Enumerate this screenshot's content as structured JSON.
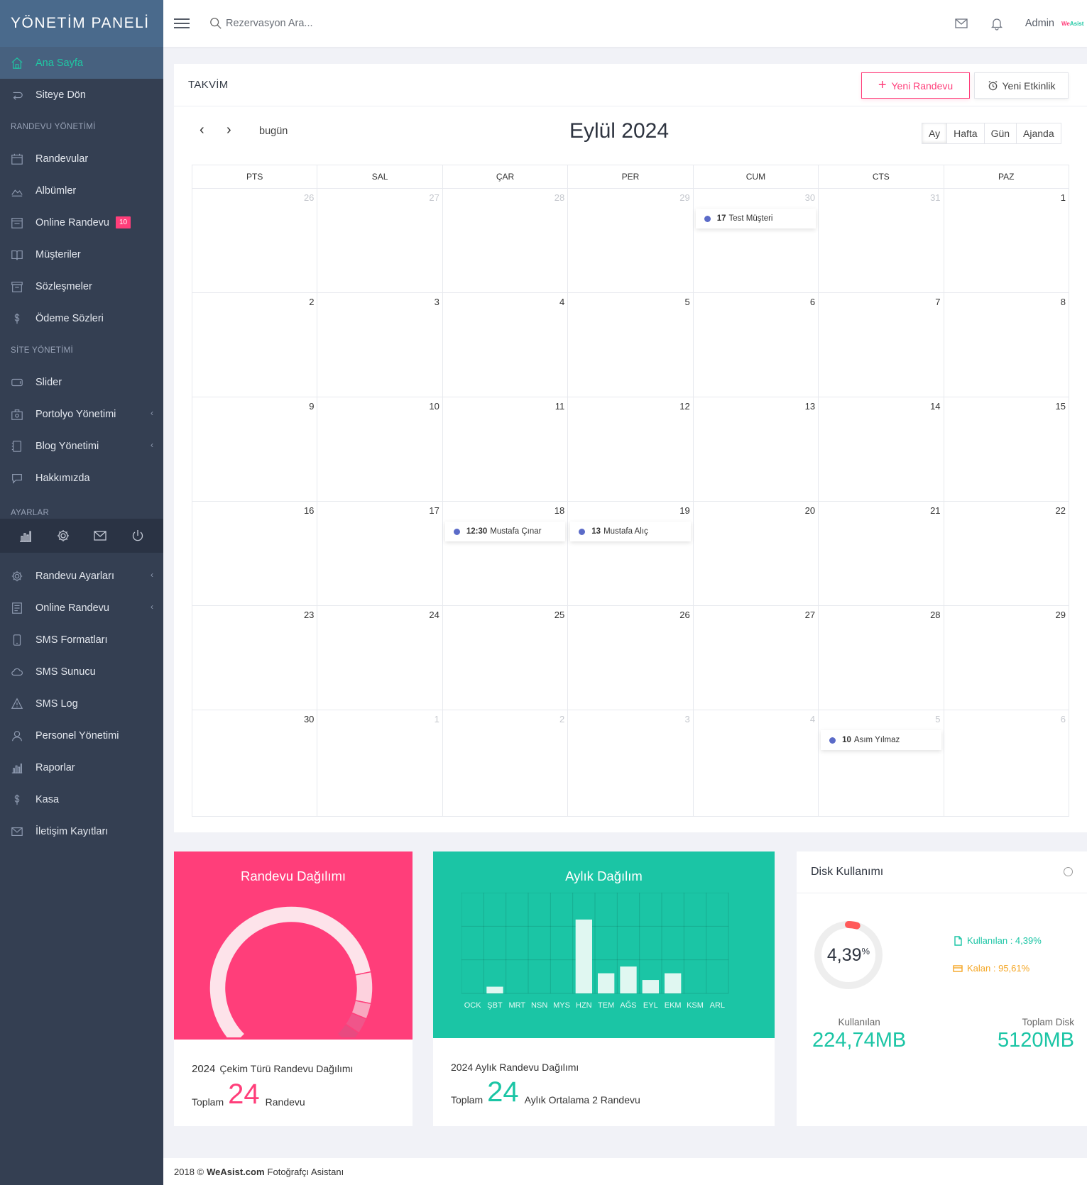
{
  "sidebar": {
    "brand": "YÖNETİM PANELİ",
    "items_top": [
      {
        "label": "Ana Sayfa",
        "icon": "home-icon",
        "active": true
      },
      {
        "label": "Siteye Dön",
        "icon": "return-icon"
      }
    ],
    "section_randevu": "RANDEVU YÖNETİMİ",
    "items_randevu": [
      {
        "label": "Randevular",
        "icon": "calendar-icon"
      },
      {
        "label": "Albümler",
        "icon": "album-icon"
      },
      {
        "label": "Online Randevu",
        "icon": "inbox-icon",
        "badge": "10"
      },
      {
        "label": "Müşteriler",
        "icon": "book-icon"
      },
      {
        "label": "Sözleşmeler",
        "icon": "archive-icon"
      },
      {
        "label": "Ödeme Sözleri",
        "icon": "dollar-icon"
      }
    ],
    "section_site": "SİTE YÖNETİMİ",
    "items_site": [
      {
        "label": "Slider",
        "icon": "slider-icon"
      },
      {
        "label": "Portolyo Yönetimi",
        "icon": "portfolio-icon",
        "chevron": true
      },
      {
        "label": "Blog Yönetimi",
        "icon": "blog-icon",
        "chevron": true
      },
      {
        "label": "Hakkımızda",
        "icon": "chat-icon"
      }
    ],
    "section_settings": "AYARLAR",
    "settings_icons": [
      "stats-icon",
      "gear-icon",
      "mail-icon",
      "power-icon"
    ],
    "items_settings": [
      {
        "label": "Randevu Ayarları",
        "icon": "gear-icon",
        "chevron": true
      },
      {
        "label": "Online Randevu",
        "icon": "document-icon",
        "chevron": true
      },
      {
        "label": "SMS Formatları",
        "icon": "phone-icon"
      },
      {
        "label": "SMS Sunucu",
        "icon": "cloud-icon"
      },
      {
        "label": "SMS Log",
        "icon": "warning-icon"
      },
      {
        "label": "Personel Yönetimi",
        "icon": "user-icon"
      },
      {
        "label": "Raporlar",
        "icon": "stats-icon"
      },
      {
        "label": "Kasa",
        "icon": "dollar-icon"
      },
      {
        "label": "İletişim Kayıtları",
        "icon": "mail-icon"
      }
    ]
  },
  "topbar": {
    "search_placeholder": "Rezervasyon Ara...",
    "admin_label": "Admin",
    "logo_text_a": "We",
    "logo_text_b": "Asist"
  },
  "calendar": {
    "card_title": "TAKVİM",
    "new_appointment": "Yeni Randevu",
    "new_event": "Yeni Etkinlik",
    "prev": "‹",
    "next": "›",
    "today": "bugün",
    "month_title": "Eylül 2024",
    "views": [
      "Ay",
      "Hafta",
      "Gün",
      "Ajanda"
    ],
    "active_view": "Ay",
    "weekdays": [
      "PTS",
      "SAL",
      "ÇAR",
      "PER",
      "CUM",
      "CTS",
      "PAZ"
    ],
    "weeks": [
      [
        {
          "d": "26",
          "o": true
        },
        {
          "d": "27",
          "o": true
        },
        {
          "d": "28",
          "o": true
        },
        {
          "d": "29",
          "o": true
        },
        {
          "d": "30",
          "o": true,
          "ev": {
            "time": "17",
            "title": "Test Müşteri"
          }
        },
        {
          "d": "31",
          "o": true
        },
        {
          "d": "1"
        }
      ],
      [
        {
          "d": "2"
        },
        {
          "d": "3"
        },
        {
          "d": "4"
        },
        {
          "d": "5"
        },
        {
          "d": "6"
        },
        {
          "d": "7"
        },
        {
          "d": "8"
        }
      ],
      [
        {
          "d": "9"
        },
        {
          "d": "10"
        },
        {
          "d": "11"
        },
        {
          "d": "12"
        },
        {
          "d": "13"
        },
        {
          "d": "14"
        },
        {
          "d": "15"
        }
      ],
      [
        {
          "d": "16"
        },
        {
          "d": "17"
        },
        {
          "d": "18",
          "ev": {
            "time": "12:30",
            "title": "Mustafa Çınar"
          }
        },
        {
          "d": "19",
          "ev": {
            "time": "13",
            "title": "Mustafa Alıç"
          }
        },
        {
          "d": "20"
        },
        {
          "d": "21"
        },
        {
          "d": "22"
        }
      ],
      [
        {
          "d": "23"
        },
        {
          "d": "24"
        },
        {
          "d": "25"
        },
        {
          "d": "26"
        },
        {
          "d": "27"
        },
        {
          "d": "28"
        },
        {
          "d": "29"
        }
      ],
      [
        {
          "d": "30"
        },
        {
          "d": "1",
          "o": true
        },
        {
          "d": "2",
          "o": true
        },
        {
          "d": "3",
          "o": true
        },
        {
          "d": "4",
          "o": true
        },
        {
          "d": "5",
          "o": true,
          "ev": {
            "time": "10",
            "title": "Asım Yılmaz"
          }
        },
        {
          "d": "6",
          "o": true
        }
      ]
    ]
  },
  "pink_card": {
    "title": "Randevu Dağılımı",
    "year": "2024",
    "subtitle": "Çekim Türü Randevu Dağılımı",
    "total_label": "Toplam",
    "total": "24",
    "total_suffix": "Randevu",
    "color": "#ff3e7a"
  },
  "green_card": {
    "title": "Aylık Dağılım",
    "subtitle": "2024 Aylık Randevu Dağılımı",
    "total_label": "Toplam",
    "total": "24",
    "total_suffix": "Aylık Ortalama 2 Randevu",
    "color": "#1bc5a5"
  },
  "chart_data": [
    {
      "type": "pie",
      "categories": [
        "",
        "",
        "",
        "",
        ""
      ],
      "values": [
        19,
        2,
        1,
        1,
        1
      ]
    },
    {
      "type": "bar",
      "categories": [
        "OCK",
        "ŞBT",
        "MRT",
        "NSN",
        "MYS",
        "HZN",
        "TEM",
        "AĞS",
        "EYL",
        "EKM",
        "KSM",
        "ARL"
      ],
      "values": [
        0,
        1,
        0,
        0,
        0,
        11,
        3,
        4,
        2,
        3,
        0,
        0
      ],
      "grid": true,
      "ylim": [
        0,
        15
      ]
    }
  ],
  "disk": {
    "title": "Disk Kullanımı",
    "percent": "4,39",
    "percent_sign": "%",
    "percent_value": 4.39,
    "used_legend": "Kullanılan : 4,39%",
    "free_legend": "Kalan : 95,61%",
    "used_label": "Kullanılan",
    "used_value": "224,74MB",
    "total_label": "Toplam Disk",
    "total_value": "5120MB"
  },
  "footer": {
    "year": "2018 ©",
    "brand": "WeAsist.com",
    "text": "Fotoğrafçı Asistanı"
  }
}
